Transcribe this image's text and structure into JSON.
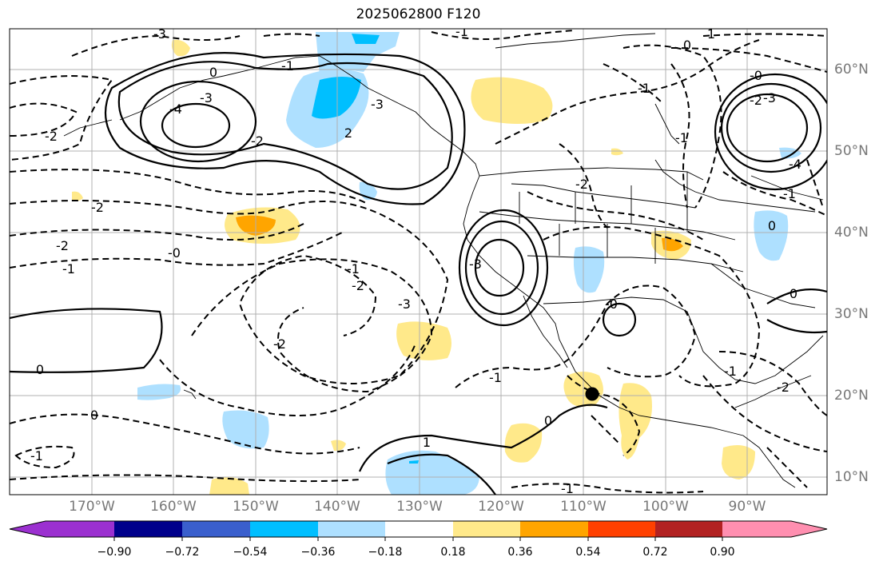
{
  "title": "2025062800 F120",
  "lat_labels": [
    "60°N",
    "50°N",
    "40°N",
    "30°N",
    "20°N",
    "10°N"
  ],
  "lon_labels": [
    "170°W",
    "160°W",
    "150°W",
    "140°W",
    "130°W",
    "120°W",
    "110°W",
    "100°W",
    "90°W"
  ],
  "contour_labels": [
    "-3",
    "-1",
    "-4",
    "-3",
    "-2",
    "0",
    "-1",
    "-3",
    "2",
    "-2",
    "-2",
    "-2",
    "-1",
    "-0",
    "-1",
    "-2",
    "-2",
    "-3",
    "-3",
    "0",
    "-1",
    "-2",
    "0",
    "-1",
    "1",
    "0",
    "1",
    "0",
    "-1",
    "-0",
    "-1",
    "-2",
    "-3",
    "-4",
    "-1",
    "0",
    "0",
    "-0",
    "-1",
    "-2",
    "-1"
  ],
  "colorbar": {
    "tick_labels": [
      "−0.90",
      "−0.72",
      "−0.54",
      "−0.36",
      "−0.18",
      "0.18",
      "0.36",
      "0.54",
      "0.72",
      "0.90"
    ],
    "colors": [
      "#9b30d0",
      "#00008b",
      "#3a5fcd",
      "#00bfff",
      "#aee0ff",
      "#ffffff",
      "#ffe98a",
      "#ffa500",
      "#ff4000",
      "#b22222",
      "#ff8fb0"
    ]
  },
  "marker": "black-dot"
}
